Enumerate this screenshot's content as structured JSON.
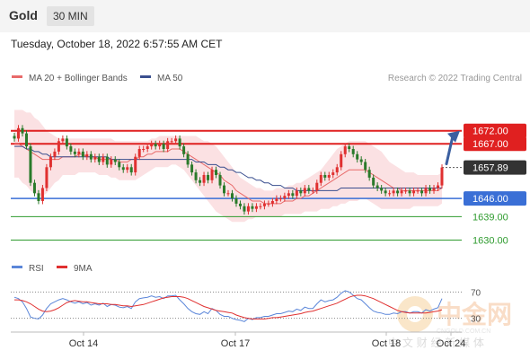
{
  "header": {
    "instrument": "Gold",
    "timeframe": "30 MIN",
    "datetime": "Tuesday, October 18, 2022 6:57:55 AM CET"
  },
  "colors": {
    "resistance": "#e02020",
    "support": "#3a6fd6",
    "target": "#2e9b2e",
    "ma20": "#e86a6a",
    "bollinger": "#f7c9cc",
    "ma50": "#3a4f8f",
    "candle_up": "#e03030",
    "candle_down": "#2a7a2a",
    "arrow": "#3b5fa0",
    "rsi": "#5b86d9",
    "rsi_ma": "#e03030"
  },
  "chart_data": [
    {
      "type": "candlestick",
      "legend": [
        {
          "label": "MA 20 + Bollinger Bands",
          "color_key": "ma20"
        },
        {
          "label": "MA 50",
          "color_key": "ma50"
        }
      ],
      "legend_position": "top-left",
      "credit": "Research © 2022 Trading Central",
      "ylim": [
        1625,
        1685
      ],
      "x_ticks": [
        "Oct 14",
        "Oct 17",
        "Oct 18",
        "Oct 24"
      ],
      "levels": [
        {
          "value": 1672.0,
          "label": "1672.00",
          "style": "resistance"
        },
        {
          "value": 1667.0,
          "label": "1667.00",
          "style": "resistance"
        },
        {
          "value": 1657.89,
          "label": "1657.89",
          "style": "current"
        },
        {
          "value": 1646.0,
          "label": "1646.00",
          "style": "support"
        },
        {
          "value": 1639.0,
          "label": "1639.00",
          "style": "target"
        },
        {
          "value": 1630.0,
          "label": "1630.00",
          "style": "target"
        }
      ],
      "close": [
        1669,
        1673,
        1671,
        1666,
        1652,
        1648,
        1645,
        1650,
        1658,
        1662,
        1664,
        1668,
        1669,
        1666,
        1664,
        1663,
        1664,
        1662,
        1663,
        1661,
        1662,
        1660,
        1662,
        1659,
        1661,
        1660,
        1658,
        1657,
        1658,
        1656,
        1662,
        1665,
        1665,
        1666,
        1667,
        1666,
        1667,
        1665,
        1668,
        1668,
        1669,
        1666,
        1663,
        1659,
        1656,
        1653,
        1652,
        1655,
        1653,
        1657,
        1655,
        1651,
        1648,
        1648,
        1646,
        1644,
        1643,
        1641,
        1643,
        1642,
        1643,
        1643,
        1644,
        1644,
        1645,
        1646,
        1646,
        1647,
        1648,
        1647,
        1649,
        1648,
        1650,
        1649,
        1649,
        1652,
        1655,
        1654,
        1655,
        1656,
        1658,
        1663,
        1666,
        1665,
        1663,
        1661,
        1660,
        1657,
        1654,
        1651,
        1650,
        1649,
        1648,
        1648,
        1649,
        1648,
        1649,
        1649,
        1648,
        1649,
        1649,
        1648,
        1650,
        1649,
        1650,
        1651,
        1657.89
      ],
      "ma20": [
        1667,
        1667,
        1666,
        1665,
        1664,
        1663,
        1662,
        1661,
        1661,
        1661,
        1661,
        1661,
        1662,
        1662,
        1662,
        1662,
        1663,
        1663,
        1662,
        1662,
        1662,
        1661,
        1661,
        1661,
        1661,
        1661,
        1660,
        1660,
        1660,
        1661,
        1661,
        1662,
        1662,
        1663,
        1663,
        1664,
        1664,
        1664,
        1664,
        1665,
        1665,
        1665,
        1664,
        1663,
        1662,
        1661,
        1660,
        1659,
        1658,
        1657,
        1656,
        1655,
        1653,
        1652,
        1651,
        1649,
        1648,
        1647,
        1646,
        1645,
        1645,
        1645,
        1644,
        1644,
        1644,
        1644,
        1644,
        1645,
        1645,
        1645,
        1646,
        1646,
        1647,
        1647,
        1648,
        1649,
        1650,
        1651,
        1652,
        1653,
        1654,
        1655,
        1656,
        1657,
        1657,
        1657,
        1657,
        1657,
        1656,
        1655,
        1654,
        1653,
        1652,
        1651,
        1650,
        1650,
        1649,
        1649,
        1649,
        1649,
        1649,
        1649,
        1649,
        1649,
        1649,
        1649,
        1650
      ],
      "bb_upper": [
        1680,
        1680,
        1680,
        1679,
        1679,
        1677,
        1676,
        1674,
        1672,
        1671,
        1670,
        1669,
        1669,
        1669,
        1669,
        1669,
        1669,
        1669,
        1669,
        1669,
        1669,
        1669,
        1669,
        1669,
        1669,
        1668,
        1668,
        1668,
        1668,
        1668,
        1668,
        1668,
        1668,
        1668,
        1669,
        1669,
        1670,
        1670,
        1670,
        1670,
        1670,
        1670,
        1670,
        1670,
        1670,
        1670,
        1669,
        1668,
        1668,
        1667,
        1666,
        1664,
        1662,
        1660,
        1658,
        1656,
        1654,
        1653,
        1652,
        1651,
        1650,
        1650,
        1649,
        1649,
        1649,
        1650,
        1650,
        1650,
        1651,
        1651,
        1652,
        1652,
        1653,
        1654,
        1655,
        1656,
        1657,
        1659,
        1661,
        1663,
        1665,
        1666,
        1667,
        1668,
        1668,
        1668,
        1668,
        1668,
        1667,
        1666,
        1665,
        1664,
        1662,
        1660,
        1659,
        1658,
        1657,
        1656,
        1656,
        1656,
        1655,
        1655,
        1655,
        1655,
        1655,
        1655,
        1656
      ],
      "bb_lower": [
        1654,
        1654,
        1652,
        1651,
        1649,
        1648,
        1647,
        1647,
        1648,
        1650,
        1652,
        1653,
        1655,
        1655,
        1655,
        1655,
        1656,
        1656,
        1656,
        1656,
        1656,
        1655,
        1655,
        1655,
        1654,
        1654,
        1653,
        1653,
        1653,
        1653,
        1653,
        1654,
        1655,
        1656,
        1657,
        1658,
        1658,
        1658,
        1658,
        1659,
        1659,
        1658,
        1657,
        1655,
        1653,
        1651,
        1649,
        1647,
        1645,
        1643,
        1641,
        1640,
        1639,
        1638,
        1637,
        1637,
        1637,
        1637,
        1638,
        1638,
        1639,
        1639,
        1639,
        1639,
        1639,
        1639,
        1639,
        1640,
        1640,
        1640,
        1640,
        1640,
        1641,
        1641,
        1641,
        1641,
        1642,
        1642,
        1642,
        1643,
        1643,
        1644,
        1644,
        1645,
        1645,
        1645,
        1646,
        1646,
        1645,
        1644,
        1643,
        1642,
        1642,
        1642,
        1642,
        1642,
        1642,
        1642,
        1642,
        1643,
        1643,
        1643,
        1643,
        1643,
        1643,
        1643,
        1644
      ],
      "ma50": [
        1666,
        1666,
        1666,
        1665,
        1665,
        1664,
        1664,
        1663,
        1663,
        1662,
        1662,
        1662,
        1662,
        1662,
        1662,
        1662,
        1662,
        1662,
        1662,
        1662,
        1662,
        1662,
        1662,
        1662,
        1661,
        1661,
        1661,
        1661,
        1661,
        1661,
        1661,
        1661,
        1661,
        1661,
        1661,
        1661,
        1661,
        1661,
        1661,
        1661,
        1661,
        1661,
        1661,
        1661,
        1661,
        1660,
        1660,
        1660,
        1659,
        1659,
        1659,
        1658,
        1658,
        1657,
        1657,
        1656,
        1656,
        1655,
        1654,
        1654,
        1653,
        1653,
        1652,
        1652,
        1651,
        1651,
        1651,
        1650,
        1650,
        1650,
        1649,
        1649,
        1649,
        1649,
        1649,
        1649,
        1649,
        1649,
        1649,
        1649,
        1649,
        1650,
        1650,
        1650,
        1650,
        1650,
        1650,
        1650,
        1650,
        1650,
        1650,
        1650,
        1650,
        1650,
        1650,
        1650,
        1650,
        1650,
        1650,
        1650,
        1650,
        1650,
        1650,
        1650,
        1650,
        1650,
        1650
      ],
      "forecast_arrow": {
        "from": 1657.89,
        "to": 1672.0
      }
    },
    {
      "type": "line",
      "legend": [
        {
          "label": "RSI",
          "color_key": "rsi"
        },
        {
          "label": "9MA",
          "color_key": "rsi_ma"
        }
      ],
      "legend_position": "top-left",
      "ylim": [
        20,
        80
      ],
      "y_ticks": [
        {
          "value": 70,
          "label": "70"
        },
        {
          "value": 30,
          "label": "30"
        }
      ],
      "rsi": [
        62,
        60,
        55,
        45,
        32,
        30,
        29,
        35,
        45,
        52,
        55,
        58,
        60,
        58,
        55,
        53,
        55,
        52,
        54,
        50,
        52,
        50,
        53,
        48,
        51,
        50,
        47,
        46,
        48,
        45,
        55,
        60,
        61,
        62,
        64,
        62,
        63,
        60,
        64,
        64,
        65,
        58,
        52,
        45,
        40,
        37,
        36,
        40,
        37,
        45,
        42,
        36,
        33,
        33,
        30,
        28,
        27,
        25,
        30,
        28,
        31,
        31,
        33,
        33,
        35,
        37,
        37,
        39,
        41,
        40,
        44,
        42,
        47,
        45,
        45,
        52,
        58,
        55,
        57,
        58,
        62,
        68,
        72,
        70,
        65,
        60,
        58,
        52,
        46,
        41,
        39,
        38,
        36,
        36,
        38,
        37,
        40,
        40,
        38,
        40,
        40,
        38,
        43,
        41,
        44,
        46,
        60
      ],
      "rsi_ma": [
        58,
        58,
        57,
        55,
        52,
        48,
        44,
        41,
        40,
        41,
        43,
        46,
        50,
        54,
        56,
        57,
        56,
        55,
        55,
        54,
        53,
        52,
        52,
        52,
        51,
        51,
        50,
        49,
        49,
        48,
        49,
        50,
        51,
        53,
        55,
        57,
        59,
        61,
        62,
        63,
        63,
        63,
        62,
        60,
        57,
        54,
        51,
        48,
        46,
        44,
        42,
        41,
        40,
        39,
        38,
        35,
        33,
        31,
        30,
        29,
        29,
        29,
        29,
        30,
        31,
        31,
        32,
        33,
        34,
        35,
        36,
        37,
        39,
        40,
        41,
        43,
        45,
        47,
        49,
        51,
        53,
        56,
        59,
        62,
        64,
        65,
        65,
        64,
        62,
        60,
        57,
        54,
        51,
        48,
        45,
        42,
        40,
        39,
        38,
        38,
        38,
        38,
        38,
        39,
        40,
        41,
        43
      ]
    }
  ],
  "watermark": {
    "brand": "中金网",
    "domain": "CNGOLD.COM.CN",
    "tagline": "中 文 财 经 新 媒 体"
  }
}
